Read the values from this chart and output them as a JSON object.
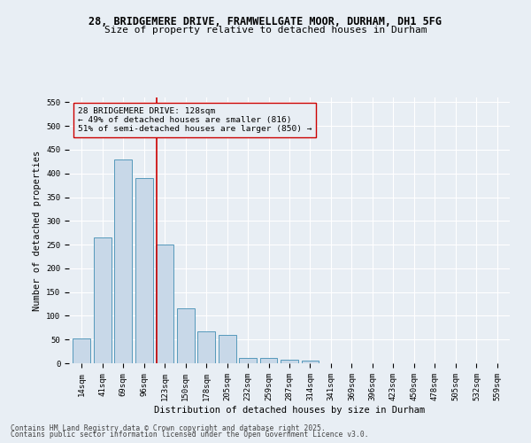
{
  "title_line1": "28, BRIDGEMERE DRIVE, FRAMWELLGATE MOOR, DURHAM, DH1 5FG",
  "title_line2": "Size of property relative to detached houses in Durham",
  "xlabel": "Distribution of detached houses by size in Durham",
  "ylabel": "Number of detached properties",
  "categories": [
    "14sqm",
    "41sqm",
    "69sqm",
    "96sqm",
    "123sqm",
    "150sqm",
    "178sqm",
    "205sqm",
    "232sqm",
    "259sqm",
    "287sqm",
    "314sqm",
    "341sqm",
    "369sqm",
    "396sqm",
    "423sqm",
    "450sqm",
    "478sqm",
    "505sqm",
    "532sqm",
    "559sqm"
  ],
  "values": [
    52,
    265,
    430,
    390,
    250,
    115,
    68,
    60,
    12,
    12,
    8,
    6,
    0,
    0,
    0,
    0,
    0,
    0,
    0,
    0,
    0
  ],
  "bar_color": "#c8d8e8",
  "bar_edge_color": "#5599bb",
  "bar_width": 0.85,
  "ylim": [
    0,
    560
  ],
  "yticks": [
    0,
    50,
    100,
    150,
    200,
    250,
    300,
    350,
    400,
    450,
    500,
    550
  ],
  "property_line_x": 3.62,
  "annotation_text_line1": "28 BRIDGEMERE DRIVE: 128sqm",
  "annotation_text_line2": "← 49% of detached houses are smaller (816)",
  "annotation_text_line3": "51% of semi-detached houses are larger (850) →",
  "line_color": "#cc0000",
  "box_edge_color": "#cc0000",
  "background_color": "#e8eef4",
  "footer_line1": "Contains HM Land Registry data © Crown copyright and database right 2025.",
  "footer_line2": "Contains public sector information licensed under the Open Government Licence v3.0.",
  "grid_color": "#ffffff",
  "title_fontsize": 8.5,
  "subtitle_fontsize": 8,
  "axis_label_fontsize": 7.5,
  "tick_fontsize": 6.5,
  "annotation_fontsize": 6.8,
  "footer_fontsize": 5.8
}
